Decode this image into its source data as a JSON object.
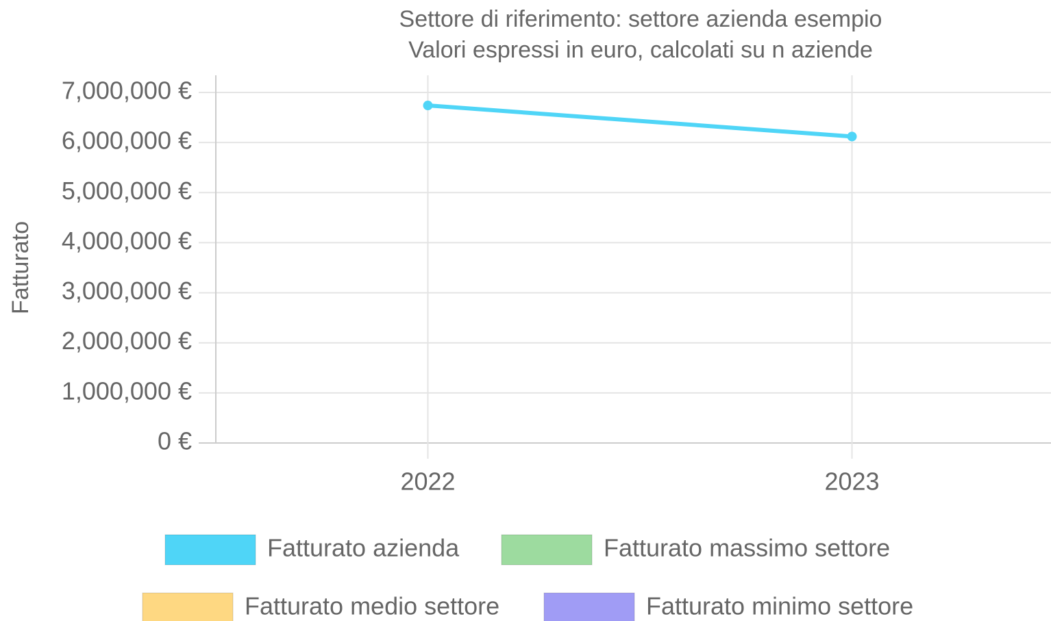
{
  "chart_data": {
    "type": "line",
    "title": "Settore di riferimento: settore azienda esempio",
    "subtitle": "Valori espressi in euro, calcolati su n aziende",
    "y_label": "Fatturato",
    "categories": [
      "2022",
      "2023"
    ],
    "series": [
      {
        "name": "Fatturato azienda",
        "color": "#4fd5f7",
        "values": [
          6740000,
          6120000
        ]
      },
      {
        "name": "Fatturato massimo settore",
        "color": "#9ddb9f",
        "values": [
          null,
          null
        ]
      },
      {
        "name": "Fatturato medio settore",
        "color": "#fed882",
        "values": [
          null,
          null
        ]
      },
      {
        "name": "Fatturato minimo settore",
        "color": "#a09cf5",
        "values": [
          null,
          null
        ]
      }
    ],
    "ylim": [
      0,
      7000000
    ],
    "yticks": [
      {
        "value": 0,
        "label": "0 €"
      },
      {
        "value": 1000000,
        "label": "1,000,000 €"
      },
      {
        "value": 2000000,
        "label": "2,000,000 €"
      },
      {
        "value": 3000000,
        "label": "3,000,000 €"
      },
      {
        "value": 4000000,
        "label": "4,000,000 €"
      },
      {
        "value": 5000000,
        "label": "5,000,000 €"
      },
      {
        "value": 6000000,
        "label": "6,000,000 €"
      },
      {
        "value": 7000000,
        "label": "7,000,000 €"
      }
    ],
    "grid": true
  }
}
